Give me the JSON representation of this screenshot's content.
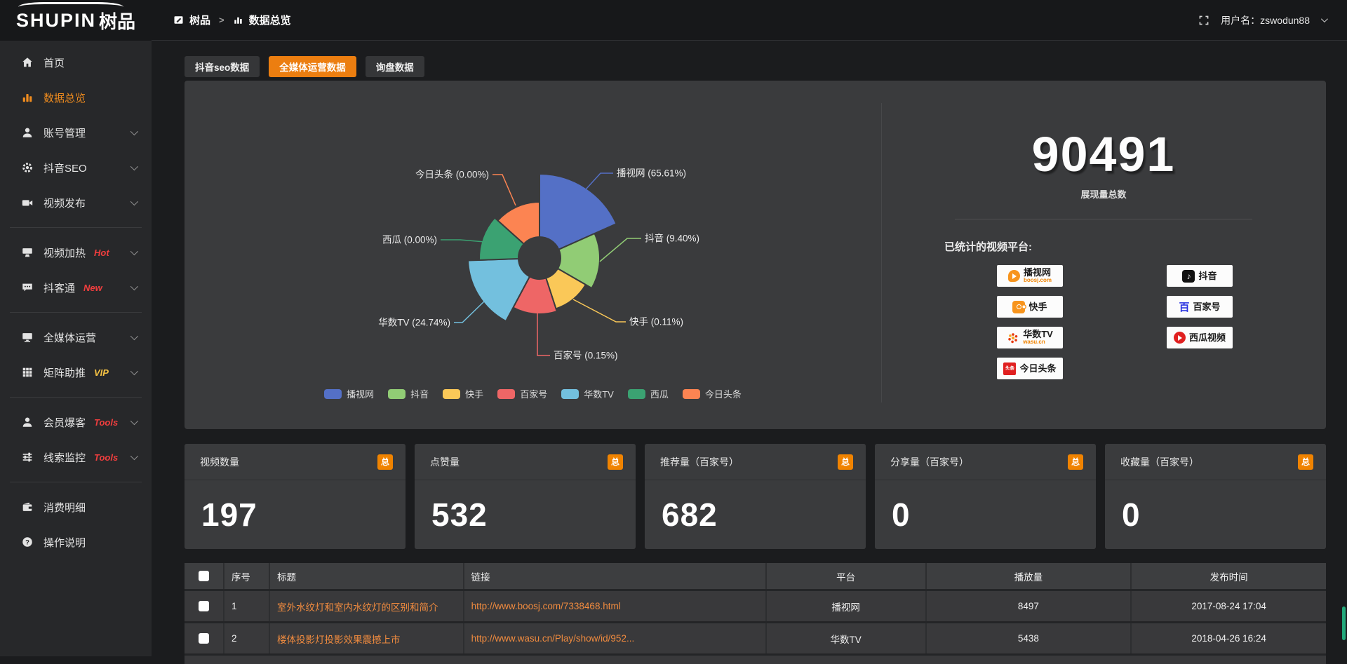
{
  "topbar": {
    "logo_text": "SHUPIN",
    "logo_suffix": "树品",
    "breadcrumb": {
      "root": "树品",
      "separator": ">",
      "current": "数据总览"
    },
    "user_label": "用户名：zswodun88"
  },
  "sidebar": {
    "items": [
      {
        "label": "首页"
      },
      {
        "label": "数据总览"
      },
      {
        "label": "账号管理"
      },
      {
        "label": "抖音SEO"
      },
      {
        "label": "视频发布"
      },
      {
        "label": "视频加热",
        "badge": "Hot",
        "badge_color": "#f03e3e"
      },
      {
        "label": "抖客通",
        "badge": "New",
        "badge_color": "#f03e3e"
      },
      {
        "label": "全媒体运营"
      },
      {
        "label": "矩阵助推",
        "badge": "VIP",
        "badge_color": "#f6c344"
      },
      {
        "label": "会员爆客",
        "badge": "Tools",
        "badge_color": "#f03e3e"
      },
      {
        "label": "线索监控",
        "badge": "Tools",
        "badge_color": "#f03e3e"
      },
      {
        "label": "消费明细"
      },
      {
        "label": "操作说明"
      }
    ]
  },
  "tabs": [
    {
      "label": "抖音seo数据",
      "active": false
    },
    {
      "label": "全媒体运营数据",
      "active": true
    },
    {
      "label": "询盘数据",
      "active": false
    }
  ],
  "chart_data": {
    "type": "pie",
    "subtype": "nightingale-rose-donut",
    "center": [
      506,
      253
    ],
    "donut_inner_radius": 30,
    "legend_position": "bottom",
    "legend": [
      "播视网",
      "抖音",
      "快手",
      "百家号",
      "华数TV",
      "西瓜",
      "今日头条"
    ],
    "slices": [
      {
        "name": "播视网",
        "pct": 65.61,
        "label": "播视网 (65.61%)",
        "color": "#5470c6",
        "a0": 0,
        "a1": 66,
        "r": 120,
        "label_pos": [
          616,
          132
        ],
        "anchor": "start",
        "line": [
          [
            572,
            155
          ],
          [
            593,
            132
          ],
          [
            611,
            132
          ]
        ]
      },
      {
        "name": "抖音",
        "pct": 9.4,
        "label": "抖音 (9.40%)",
        "color": "#91cc75",
        "a0": 66,
        "a1": 120,
        "r": 86,
        "label_pos": [
          656,
          225
        ],
        "anchor": "start",
        "line": [
          [
            592,
            258
          ],
          [
            631,
            225
          ],
          [
            651,
            225
          ]
        ]
      },
      {
        "name": "快手",
        "pct": 0.11,
        "label": "快手 (0.11%)",
        "color": "#fac858",
        "a0": 120,
        "a1": 162,
        "r": 76,
        "label_pos": [
          634,
          344
        ],
        "anchor": "start",
        "line": [
          [
            554,
            312
          ],
          [
            615,
            344
          ],
          [
            629,
            344
          ]
        ]
      },
      {
        "name": "百家号",
        "pct": 0.15,
        "label": "百家号 (0.15%)",
        "color": "#ee6666",
        "a0": 162,
        "a1": 208,
        "r": 80,
        "label_pos": [
          526,
          392
        ],
        "anchor": "start",
        "line": [
          [
            503,
            332
          ],
          [
            503,
            392
          ],
          [
            521,
            392
          ]
        ]
      },
      {
        "name": "华数TV",
        "pct": 24.74,
        "label": "华数TV (24.74%)",
        "color": "#73c0de",
        "a0": 208,
        "a1": 268,
        "r": 102,
        "label_pos": [
          379,
          345
        ],
        "anchor": "end",
        "line": [
          [
            428,
            314
          ],
          [
            396,
            345
          ],
          [
            384,
            345
          ]
        ]
      },
      {
        "name": "西瓜",
        "pct": 0.0,
        "label": "西瓜 (0.00%)",
        "color": "#3ba272",
        "a0": 268,
        "a1": 312,
        "r": 86,
        "label_pos": [
          360,
          227
        ],
        "anchor": "end",
        "line": [
          [
            428,
            230
          ],
          [
            393,
            227
          ],
          [
            365,
            227
          ]
        ]
      },
      {
        "name": "今日头条",
        "pct": 0.0,
        "label": "今日头条 (0.00%)",
        "color": "#fc8452",
        "a0": 312,
        "a1": 360,
        "r": 80,
        "label_pos": [
          434,
          134
        ],
        "anchor": "end",
        "line": [
          [
            472,
            178
          ],
          [
            453,
            134
          ],
          [
            439,
            134
          ]
        ]
      }
    ]
  },
  "summary": {
    "total_value": "90491",
    "total_label": "展现量总数",
    "platforms_label": "已统计的视频平台:",
    "platforms": [
      {
        "name": "播视网",
        "sub": "boosj.com"
      },
      {
        "name": "快手"
      },
      {
        "name": "华数TV",
        "sub": "wasu.cn"
      },
      {
        "name": "今日头条"
      },
      {
        "name": "抖音"
      },
      {
        "name": "百家号"
      },
      {
        "name": "西瓜视频"
      }
    ]
  },
  "stat_cards": [
    {
      "label": "视频数量",
      "badge": "总",
      "value": "197"
    },
    {
      "label": "点赞量",
      "badge": "总",
      "value": "532"
    },
    {
      "label": "推荐量（百家号）",
      "badge": "总",
      "value": "682"
    },
    {
      "label": "分享量（百家号）",
      "badge": "总",
      "value": "0"
    },
    {
      "label": "收藏量（百家号）",
      "badge": "总",
      "value": "0"
    }
  ],
  "table": {
    "headers": [
      "序号",
      "标题",
      "链接",
      "平台",
      "播放量",
      "发布时间"
    ],
    "rows": [
      {
        "no": "1",
        "title": "室外水纹灯和室内水纹灯的区别和简介",
        "link": "http://www.boosj.com/7338468.html",
        "platform": "播视网",
        "plays": "8497",
        "time": "2017-08-24 17:04"
      },
      {
        "no": "2",
        "title": "楼体投影灯投影效果震撼上市",
        "link": "http://www.wasu.cn/Play/show/id/952...",
        "platform": "华数TV",
        "plays": "5438",
        "time": "2018-04-26 16:24"
      }
    ]
  }
}
